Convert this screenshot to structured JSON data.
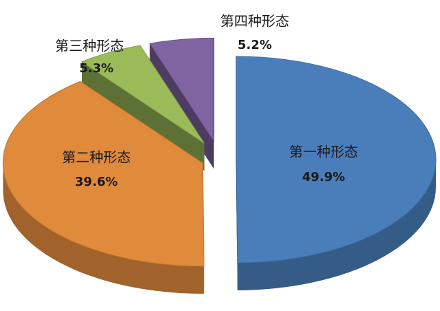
{
  "chart_data": {
    "type": "pie",
    "categories": [
      "第一种形态",
      "第二种形态",
      "第三种形态",
      "第四种形态"
    ],
    "values": [
      49.9,
      39.6,
      5.3,
      5.2
    ],
    "value_labels": [
      "49.9%",
      "39.6%",
      "5.3%",
      "5.2%"
    ],
    "colors": [
      "#4a7ebb",
      "#e08a3c",
      "#9bbb59",
      "#8064a2"
    ]
  }
}
